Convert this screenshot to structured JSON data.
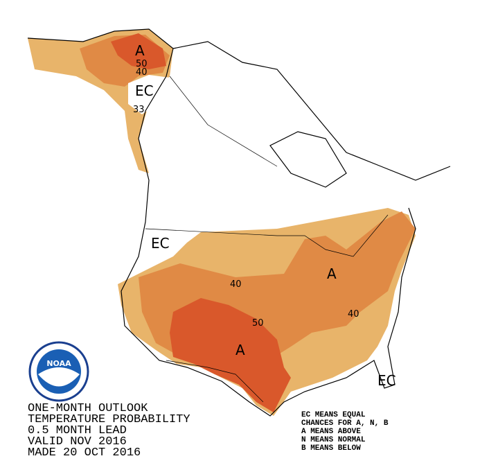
{
  "map": {
    "labels": [
      {
        "text": "A"
      },
      {
        "text": "50"
      },
      {
        "text": "40"
      },
      {
        "text": "EC"
      },
      {
        "text": "33"
      },
      {
        "text": "EC"
      },
      {
        "text": "40"
      },
      {
        "text": "50"
      },
      {
        "text": "A"
      },
      {
        "text": "A"
      },
      {
        "text": "40"
      },
      {
        "text": "EC"
      }
    ]
  },
  "outlook": {
    "lines": [
      "ONE-MONTH OUTLOOK",
      "TEMPERATURE PROBABILITY",
      "0.5 MONTH LEAD",
      "VALID NOV 2016",
      "MADE 20 OCT 2016"
    ]
  },
  "legend": {
    "lines": [
      "EC MEANS EQUAL",
      "CHANCES FOR A, N, B",
      "A MEANS ABOVE",
      "N MEANS NORMAL",
      "B MEANS BELOW"
    ]
  },
  "logo": {
    "text": "NOAA"
  }
}
